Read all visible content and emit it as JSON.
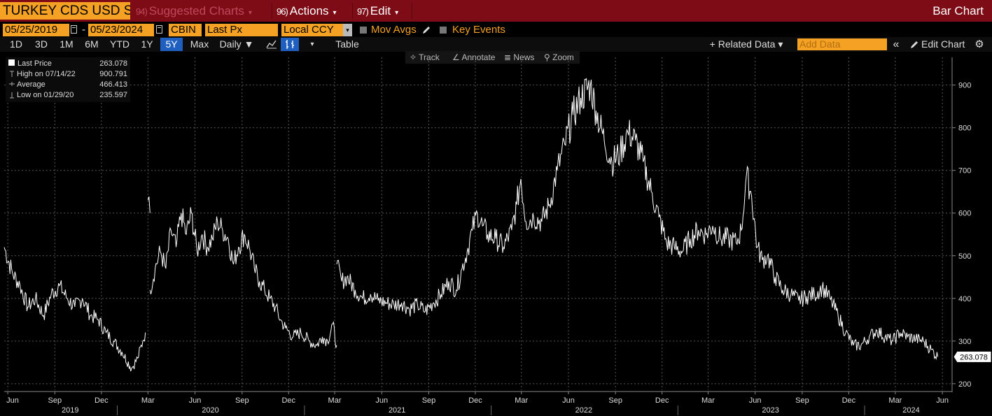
{
  "header": {
    "ticker": "TURKEY CDS USD SR",
    "suggested": {
      "num": "94)",
      "label": "Suggested Charts"
    },
    "actions": {
      "num": "96)",
      "label": "Actions"
    },
    "edit": {
      "num": "97)",
      "label": "Edit"
    },
    "view_title": "Bar Chart",
    "caret": "▾"
  },
  "controls": {
    "start_date": "05/25/2019",
    "date_sep": "-",
    "end_date": "05/23/2024",
    "source": "CBIN",
    "field": "Last Px",
    "currency": "Local CCY",
    "mov_avgs": "Mov Avgs",
    "key_events": "Key Events"
  },
  "toolbar": {
    "ranges": [
      "1D",
      "3D",
      "1M",
      "6M",
      "YTD",
      "1Y",
      "5Y",
      "Max"
    ],
    "selected_range": "5Y",
    "frequency": "Daily ▼",
    "table": "Table",
    "related_data": "+ Related Data ▾",
    "add_data_placeholder": "Add Data",
    "collapse": "«",
    "edit_chart": "Edit Chart",
    "gear": "⚙"
  },
  "chart_tools": [
    "Track",
    "Annotate",
    "News",
    "Zoom"
  ],
  "legend": {
    "last_label": "Last Price",
    "last_value": "263.078",
    "high_label": "High on 07/14/22",
    "high_value": "900.791",
    "avg_label": "Average",
    "avg_value": "466.413",
    "low_label": "Low on 01/29/20",
    "low_value": "235.597"
  },
  "colors": {
    "accent": "#f5a123",
    "header_bg": "#7d0c17",
    "selected": "#1f5fbf",
    "line": "#ffffff"
  },
  "chart_data": {
    "type": "line",
    "title": "",
    "xlabel": "",
    "ylabel": "",
    "ylim": [
      185,
      965
    ],
    "grid": true,
    "y_ticks": [
      200,
      300,
      400,
      500,
      600,
      700,
      800,
      900
    ],
    "last_value_label": "263.078",
    "x_month_ticks": [
      {
        "date": "2019-06-01",
        "label": "Jun"
      },
      {
        "date": "2019-09-01",
        "label": "Sep"
      },
      {
        "date": "2019-12-01",
        "label": "Dec"
      },
      {
        "date": "2020-03-01",
        "label": "Mar"
      },
      {
        "date": "2020-06-01",
        "label": "Jun"
      },
      {
        "date": "2020-09-01",
        "label": "Sep"
      },
      {
        "date": "2020-12-01",
        "label": "Dec"
      },
      {
        "date": "2021-03-01",
        "label": "Mar"
      },
      {
        "date": "2021-06-01",
        "label": "Jun"
      },
      {
        "date": "2021-09-01",
        "label": "Sep"
      },
      {
        "date": "2021-12-01",
        "label": "Dec"
      },
      {
        "date": "2022-03-01",
        "label": "Mar"
      },
      {
        "date": "2022-06-01",
        "label": "Jun"
      },
      {
        "date": "2022-09-01",
        "label": "Sep"
      },
      {
        "date": "2022-12-01",
        "label": "Dec"
      },
      {
        "date": "2023-03-01",
        "label": "Mar"
      },
      {
        "date": "2023-06-01",
        "label": "Jun"
      },
      {
        "date": "2023-09-01",
        "label": "Sep"
      },
      {
        "date": "2023-12-01",
        "label": "Dec"
      },
      {
        "date": "2024-03-01",
        "label": "Mar"
      },
      {
        "date": "2024-06-01",
        "label": "Jun"
      }
    ],
    "x_year_labels": [
      {
        "date": "2019-10-01",
        "label": "2019"
      },
      {
        "date": "2020-07-01",
        "label": "2020"
      },
      {
        "date": "2021-07-01",
        "label": "2021"
      },
      {
        "date": "2022-07-01",
        "label": "2022"
      },
      {
        "date": "2023-07-01",
        "label": "2023"
      },
      {
        "date": "2024-04-01",
        "label": "2024"
      }
    ],
    "series": [
      {
        "points": [
          [
            "2019-05-25",
            520
          ],
          [
            "2019-06-10",
            460
          ],
          [
            "2019-06-25",
            430
          ],
          [
            "2019-07-10",
            380
          ],
          [
            "2019-07-25",
            400
          ],
          [
            "2019-08-10",
            360
          ],
          [
            "2019-08-25",
            410
          ],
          [
            "2019-09-10",
            430
          ],
          [
            "2019-09-25",
            400
          ],
          [
            "2019-10-10",
            380
          ],
          [
            "2019-10-25",
            400
          ],
          [
            "2019-11-10",
            360
          ],
          [
            "2019-11-25",
            350
          ],
          [
            "2019-12-10",
            320
          ],
          [
            "2019-12-25",
            300
          ],
          [
            "2020-01-10",
            275
          ],
          [
            "2020-01-29",
            236
          ],
          [
            "2020-02-10",
            260
          ],
          [
            "2020-02-20",
            300
          ],
          [
            "2020-02-25",
            320
          ]
        ]
      },
      {
        "points": [
          [
            "2020-03-01",
            630
          ],
          [
            "2020-03-05",
            600
          ]
        ]
      },
      {
        "points": [
          [
            "2020-03-05",
            420
          ],
          [
            "2020-03-15",
            470
          ],
          [
            "2020-03-25",
            510
          ],
          [
            "2020-04-05",
            470
          ],
          [
            "2020-04-15",
            560
          ],
          [
            "2020-04-25",
            520
          ],
          [
            "2020-05-05",
            600
          ],
          [
            "2020-05-15",
            550
          ],
          [
            "2020-05-25",
            600
          ],
          [
            "2020-06-05",
            510
          ],
          [
            "2020-06-15",
            550
          ],
          [
            "2020-06-25",
            520
          ],
          [
            "2020-07-05",
            540
          ],
          [
            "2020-07-15",
            580
          ],
          [
            "2020-07-25",
            560
          ],
          [
            "2020-08-05",
            540
          ],
          [
            "2020-08-15",
            480
          ],
          [
            "2020-08-25",
            520
          ],
          [
            "2020-09-05",
            550
          ],
          [
            "2020-09-15",
            520
          ],
          [
            "2020-09-25",
            470
          ],
          [
            "2020-10-05",
            440
          ],
          [
            "2020-10-15",
            420
          ],
          [
            "2020-10-25",
            400
          ],
          [
            "2020-11-05",
            380
          ],
          [
            "2020-11-15",
            350
          ],
          [
            "2020-11-25",
            330
          ],
          [
            "2020-12-10",
            310
          ],
          [
            "2020-12-25",
            320
          ],
          [
            "2021-01-10",
            300
          ],
          [
            "2021-01-25",
            290
          ],
          [
            "2021-02-05",
            310
          ],
          [
            "2021-02-15",
            300
          ],
          [
            "2021-02-25",
            340
          ],
          [
            "2021-03-05",
            290
          ]
        ]
      },
      {
        "points": [
          [
            "2021-03-05",
            480
          ],
          [
            "2021-03-15",
            440
          ],
          [
            "2021-03-25",
            450
          ],
          [
            "2021-04-10",
            420
          ],
          [
            "2021-04-25",
            400
          ],
          [
            "2021-05-10",
            410
          ],
          [
            "2021-05-25",
            395
          ],
          [
            "2021-06-10",
            390
          ],
          [
            "2021-06-25",
            385
          ],
          [
            "2021-07-10",
            390
          ],
          [
            "2021-07-25",
            375
          ],
          [
            "2021-08-10",
            385
          ],
          [
            "2021-08-25",
            370
          ],
          [
            "2021-09-10",
            390
          ],
          [
            "2021-09-25",
            410
          ],
          [
            "2021-10-10",
            440
          ],
          [
            "2021-10-25",
            420
          ],
          [
            "2021-11-05",
            470
          ],
          [
            "2021-11-15",
            510
          ],
          [
            "2021-11-25",
            560
          ],
          [
            "2021-12-05",
            600
          ],
          [
            "2021-12-15",
            570
          ],
          [
            "2021-12-25",
            550
          ],
          [
            "2022-01-10",
            540
          ],
          [
            "2022-01-25",
            520
          ],
          [
            "2022-02-10",
            560
          ],
          [
            "2022-02-20",
            620
          ],
          [
            "2022-02-28",
            680
          ],
          [
            "2022-03-10",
            580
          ],
          [
            "2022-03-25",
            590
          ],
          [
            "2022-04-10",
            580
          ],
          [
            "2022-04-25",
            620
          ],
          [
            "2022-05-10",
            700
          ],
          [
            "2022-05-25",
            760
          ],
          [
            "2022-06-10",
            830
          ],
          [
            "2022-06-25",
            870
          ],
          [
            "2022-07-14",
            901
          ],
          [
            "2022-07-25",
            840
          ],
          [
            "2022-08-10",
            770
          ],
          [
            "2022-08-25",
            720
          ],
          [
            "2022-09-10",
            740
          ],
          [
            "2022-09-25",
            790
          ],
          [
            "2022-10-10",
            770
          ],
          [
            "2022-10-25",
            720
          ],
          [
            "2022-11-10",
            650
          ],
          [
            "2022-11-25",
            590
          ],
          [
            "2022-12-10",
            530
          ],
          [
            "2022-12-25",
            520
          ],
          [
            "2023-01-10",
            510
          ],
          [
            "2023-01-25",
            540
          ],
          [
            "2023-02-10",
            560
          ],
          [
            "2023-02-25",
            550
          ],
          [
            "2023-03-10",
            570
          ],
          [
            "2023-03-25",
            540
          ],
          [
            "2023-04-10",
            540
          ],
          [
            "2023-04-25",
            530
          ],
          [
            "2023-05-05",
            560
          ],
          [
            "2023-05-15",
            690
          ],
          [
            "2023-05-25",
            640
          ],
          [
            "2023-06-05",
            520
          ],
          [
            "2023-06-15",
            490
          ],
          [
            "2023-06-25",
            500
          ],
          [
            "2023-07-10",
            450
          ],
          [
            "2023-07-25",
            420
          ],
          [
            "2023-08-10",
            410
          ],
          [
            "2023-08-25",
            395
          ],
          [
            "2023-09-10",
            405
          ],
          [
            "2023-09-25",
            410
          ],
          [
            "2023-10-10",
            425
          ],
          [
            "2023-10-25",
            400
          ],
          [
            "2023-11-10",
            360
          ],
          [
            "2023-11-25",
            320
          ],
          [
            "2023-12-10",
            290
          ],
          [
            "2023-12-25",
            290
          ],
          [
            "2024-01-10",
            310
          ],
          [
            "2024-01-25",
            325
          ],
          [
            "2024-02-10",
            310
          ],
          [
            "2024-02-25",
            300
          ],
          [
            "2024-03-10",
            320
          ],
          [
            "2024-03-25",
            310
          ],
          [
            "2024-04-10",
            305
          ],
          [
            "2024-04-25",
            300
          ],
          [
            "2024-05-10",
            280
          ],
          [
            "2024-05-23",
            263
          ]
        ]
      }
    ]
  }
}
